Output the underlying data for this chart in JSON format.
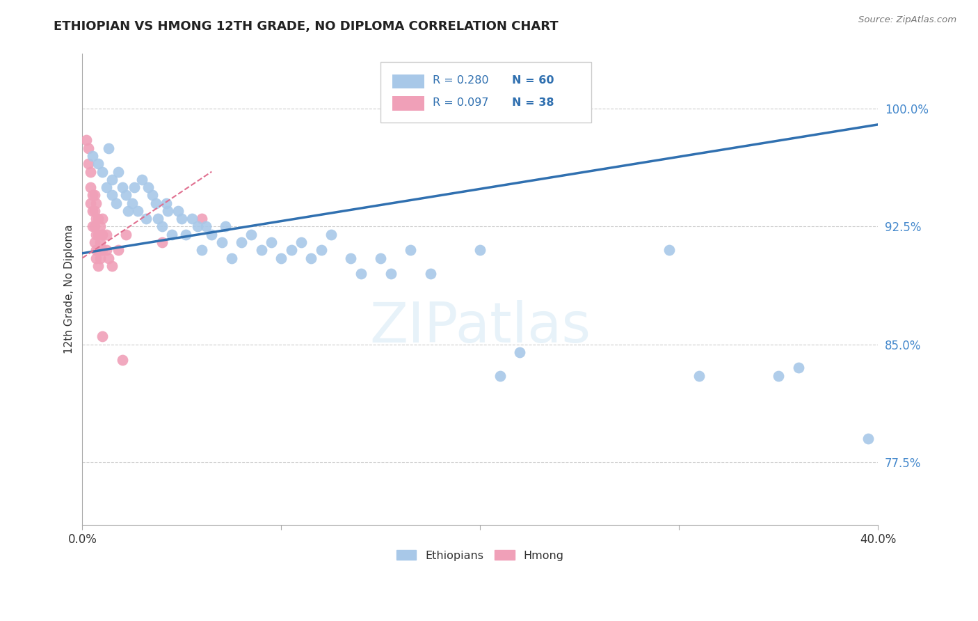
{
  "title": "ETHIOPIAN VS HMONG 12TH GRADE, NO DIPLOMA CORRELATION CHART",
  "source": "Source: ZipAtlas.com",
  "ylabel": "12th Grade, No Diploma",
  "xlim": [
    0.0,
    0.4
  ],
  "ylim": [
    0.735,
    1.035
  ],
  "yticks": [
    0.775,
    0.85,
    0.925,
    1.0
  ],
  "yticklabels": [
    "77.5%",
    "85.0%",
    "92.5%",
    "100.0%"
  ],
  "blue_color": "#A8C8E8",
  "pink_color": "#F0A0B8",
  "line_blue_color": "#3070B0",
  "line_pink_color": "#E07090",
  "R_blue": 0.28,
  "N_blue": 60,
  "R_pink": 0.097,
  "N_pink": 38,
  "legend_label_blue": "Ethiopians",
  "legend_label_pink": "Hmong",
  "blue_line_x": [
    0.0,
    0.4
  ],
  "blue_line_y": [
    0.908,
    0.99
  ],
  "pink_line_x": [
    0.0,
    0.065
  ],
  "pink_line_y": [
    0.905,
    0.96
  ],
  "blue_scatter_x": [
    0.005,
    0.008,
    0.01,
    0.012,
    0.013,
    0.015,
    0.015,
    0.017,
    0.018,
    0.02,
    0.022,
    0.023,
    0.025,
    0.026,
    0.028,
    0.03,
    0.032,
    0.033,
    0.035,
    0.037,
    0.038,
    0.04,
    0.042,
    0.043,
    0.045,
    0.048,
    0.05,
    0.052,
    0.055,
    0.058,
    0.06,
    0.062,
    0.065,
    0.07,
    0.072,
    0.075,
    0.08,
    0.085,
    0.09,
    0.095,
    0.1,
    0.105,
    0.11,
    0.115,
    0.12,
    0.125,
    0.135,
    0.14,
    0.15,
    0.155,
    0.165,
    0.175,
    0.2,
    0.21,
    0.22,
    0.295,
    0.31,
    0.35,
    0.36,
    0.395
  ],
  "blue_scatter_y": [
    0.97,
    0.965,
    0.96,
    0.95,
    0.975,
    0.955,
    0.945,
    0.94,
    0.96,
    0.95,
    0.945,
    0.935,
    0.94,
    0.95,
    0.935,
    0.955,
    0.93,
    0.95,
    0.945,
    0.94,
    0.93,
    0.925,
    0.94,
    0.935,
    0.92,
    0.935,
    0.93,
    0.92,
    0.93,
    0.925,
    0.91,
    0.925,
    0.92,
    0.915,
    0.925,
    0.905,
    0.915,
    0.92,
    0.91,
    0.915,
    0.905,
    0.91,
    0.915,
    0.905,
    0.91,
    0.92,
    0.905,
    0.895,
    0.905,
    0.895,
    0.91,
    0.895,
    0.91,
    0.83,
    0.845,
    0.91,
    0.83,
    0.83,
    0.835,
    0.79
  ],
  "pink_scatter_x": [
    0.002,
    0.003,
    0.003,
    0.004,
    0.004,
    0.004,
    0.005,
    0.005,
    0.005,
    0.006,
    0.006,
    0.006,
    0.006,
    0.007,
    0.007,
    0.007,
    0.007,
    0.007,
    0.008,
    0.008,
    0.008,
    0.008,
    0.009,
    0.009,
    0.009,
    0.01,
    0.01,
    0.01,
    0.01,
    0.012,
    0.012,
    0.013,
    0.015,
    0.018,
    0.02,
    0.022,
    0.04,
    0.06
  ],
  "pink_scatter_y": [
    0.98,
    0.965,
    0.975,
    0.96,
    0.95,
    0.94,
    0.945,
    0.935,
    0.925,
    0.945,
    0.935,
    0.925,
    0.915,
    0.94,
    0.93,
    0.92,
    0.91,
    0.905,
    0.93,
    0.92,
    0.91,
    0.9,
    0.925,
    0.915,
    0.905,
    0.93,
    0.92,
    0.91,
    0.855,
    0.92,
    0.91,
    0.905,
    0.9,
    0.91,
    0.84,
    0.92,
    0.915,
    0.93
  ]
}
